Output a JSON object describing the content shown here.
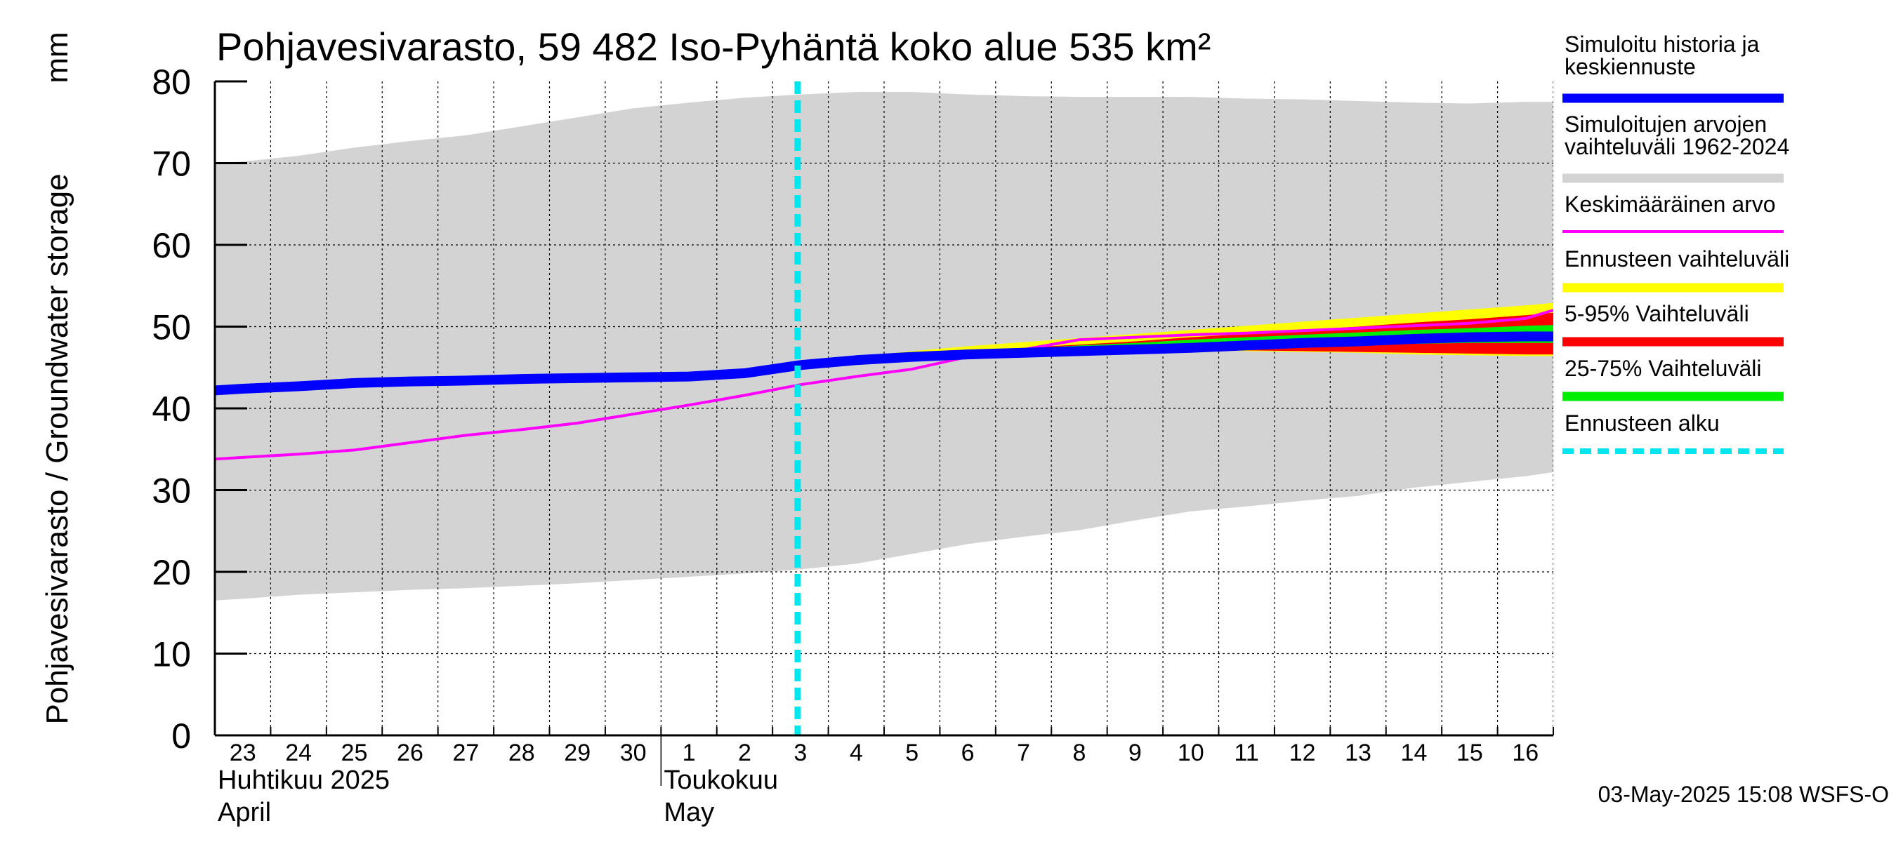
{
  "chart_data": {
    "type": "area",
    "title": "Pohjavesivarasto, 59 482 Iso-Pyhäntä koko alue 535 km²",
    "ylabel": "Pohjavesivarasto / Groundwater storage",
    "yunit": "mm",
    "ylim": [
      0,
      80
    ],
    "yticks": [
      0,
      10,
      20,
      30,
      40,
      50,
      60,
      70,
      80
    ],
    "xlim": [
      -0.5,
      23.5
    ],
    "x_tick_labels": [
      "23",
      "24",
      "25",
      "26",
      "27",
      "28",
      "29",
      "30",
      "1",
      "2",
      "3",
      "4",
      "5",
      "6",
      "7",
      "8",
      "9",
      "10",
      "11",
      "12",
      "13",
      "14",
      "15",
      "16"
    ],
    "month_labels": [
      {
        "text": "Huhtikuu  2025",
        "index": 0,
        "line": 1
      },
      {
        "text": "April",
        "index": 0,
        "line": 2
      },
      {
        "text": "Toukokuu",
        "index": 8,
        "line": 1
      },
      {
        "text": "May",
        "index": 8,
        "line": 2
      }
    ],
    "month_separator_index": 8,
    "forecast_start_x": 9.95,
    "grid": true,
    "legend_position": "right",
    "series": [
      {
        "name": "Simuloitujen arvojen vaihteluväli 1962-2024",
        "kind": "band",
        "color": "#d3d3d3",
        "x": [
          -0.5,
          0,
          1,
          2,
          3,
          4,
          5,
          6,
          7,
          8,
          9,
          10,
          11,
          12,
          13,
          14,
          15,
          16,
          17,
          18,
          19,
          20,
          21,
          22,
          23,
          23.5
        ],
        "lower": [
          16.5,
          16.7,
          17.2,
          17.5,
          17.8,
          18.0,
          18.3,
          18.6,
          19.0,
          19.4,
          19.8,
          20.3,
          21.0,
          22.2,
          23.4,
          24.3,
          25.1,
          26.3,
          27.4,
          28.0,
          28.7,
          29.3,
          30.3,
          31.0,
          31.7,
          32.2
        ],
        "upper": [
          70,
          70.2,
          70.9,
          71.9,
          72.7,
          73.4,
          74.5,
          75.6,
          76.7,
          77.4,
          78.0,
          78.4,
          78.7,
          78.7,
          78.4,
          78.2,
          78.1,
          78.1,
          78.1,
          77.9,
          77.8,
          77.6,
          77.4,
          77.3,
          77.5,
          77.5
        ]
      },
      {
        "name": "Ennusteen vaihteluväli",
        "kind": "band",
        "color": "#ffff00",
        "x": [
          10,
          11,
          12,
          13,
          14,
          15,
          16,
          17,
          18,
          19,
          20,
          21,
          22,
          23,
          23.5
        ],
        "lower": [
          45.4,
          45.8,
          46.1,
          46.4,
          46.8,
          47.0,
          47.1,
          47.1,
          47.0,
          46.9,
          46.8,
          46.6,
          46.5,
          46.4,
          46.4
        ],
        "upper": [
          45.4,
          46.3,
          47.0,
          47.6,
          48.1,
          48.6,
          49.1,
          49.6,
          50.1,
          50.6,
          51.1,
          51.6,
          52.1,
          52.6,
          52.9
        ]
      },
      {
        "name": "5-95% Vaihteluväli",
        "kind": "band",
        "color": "#ff0000",
        "x": [
          10,
          11,
          12,
          13,
          14,
          15,
          16,
          17,
          18,
          19,
          20,
          21,
          22,
          23,
          23.5
        ],
        "lower": [
          45.4,
          45.9,
          46.2,
          46.5,
          46.9,
          47.1,
          47.2,
          47.2,
          47.1,
          47.0,
          46.9,
          46.8,
          46.7,
          46.6,
          46.6
        ],
        "upper": [
          45.4,
          46.1,
          46.6,
          47.0,
          47.4,
          47.8,
          48.2,
          48.7,
          49.1,
          49.6,
          50.0,
          50.5,
          50.9,
          51.4,
          51.7
        ]
      },
      {
        "name": "25-75% Vaihteluväli",
        "kind": "band",
        "color": "#00ee00",
        "x": [
          10,
          11,
          12,
          13,
          14,
          15,
          16,
          17,
          18,
          19,
          20,
          21,
          22,
          23,
          23.5
        ],
        "lower": [
          45.4,
          45.9,
          46.3,
          46.7,
          47.0,
          47.3,
          47.5,
          47.6,
          47.7,
          47.8,
          47.9,
          47.9,
          48.0,
          48.0,
          48.0
        ],
        "upper": [
          45.4,
          46.0,
          46.5,
          46.9,
          47.3,
          47.7,
          48.0,
          48.4,
          48.7,
          49.0,
          49.3,
          49.6,
          49.8,
          50.1,
          50.2
        ]
      },
      {
        "name": "Simuloitu historia ja keskiennuste",
        "kind": "line",
        "color": "#0000ff",
        "x": [
          -0.5,
          0,
          1,
          2,
          3,
          4,
          5,
          6,
          7,
          8,
          9,
          10,
          11,
          12,
          13,
          14,
          15,
          16,
          17,
          18,
          19,
          20,
          21,
          22,
          23,
          23.5
        ],
        "values": [
          42.2,
          42.4,
          42.7,
          43.1,
          43.3,
          43.4,
          43.6,
          43.7,
          43.8,
          43.9,
          44.3,
          45.3,
          45.9,
          46.3,
          46.6,
          46.8,
          47.0,
          47.2,
          47.4,
          47.7,
          48.0,
          48.2,
          48.5,
          48.7,
          48.8,
          48.8
        ]
      },
      {
        "name": "Keskimääräinen arvo",
        "kind": "line",
        "color": "#ff00ff",
        "x": [
          -0.5,
          0,
          1,
          2,
          3,
          4,
          5,
          6,
          7,
          8,
          9,
          10,
          11,
          12,
          13,
          14,
          15,
          16,
          17,
          18,
          19,
          20,
          21,
          22,
          23,
          23.5
        ],
        "values": [
          33.8,
          34.0,
          34.4,
          34.9,
          35.8,
          36.7,
          37.4,
          38.2,
          39.3,
          40.4,
          41.6,
          42.9,
          43.9,
          44.8,
          46.3,
          47.2,
          48.4,
          48.7,
          49.0,
          49.2,
          49.5,
          49.8,
          50.1,
          50.4,
          51.0,
          52.0
        ]
      },
      {
        "name": "Ennusteen alku",
        "kind": "vline",
        "color": "#00e5ee",
        "x": 9.95
      }
    ],
    "legend": [
      {
        "label_lines": [
          "Simuloitu historia ja",
          "keskiennuste"
        ],
        "color": "#0000ff",
        "style": "thick"
      },
      {
        "label_lines": [
          "Simuloitujen arvojen",
          "vaihteluväli 1962-2024"
        ],
        "color": "#d3d3d3",
        "style": "thick"
      },
      {
        "label_lines": [
          "Keskimääräinen arvo"
        ],
        "color": "#ff00ff",
        "style": "thin"
      },
      {
        "label_lines": [
          "Ennusteen vaihteluväli"
        ],
        "color": "#ffff00",
        "style": "thick"
      },
      {
        "label_lines": [
          "5-95% Vaihteluväli"
        ],
        "color": "#ff0000",
        "style": "thick"
      },
      {
        "label_lines": [
          "25-75% Vaihteluväli"
        ],
        "color": "#00ee00",
        "style": "thick"
      },
      {
        "label_lines": [
          "Ennusteen alku"
        ],
        "color": "#00e5ee",
        "style": "dashed"
      }
    ],
    "footer": "03-May-2025 15:08 WSFS-O"
  }
}
